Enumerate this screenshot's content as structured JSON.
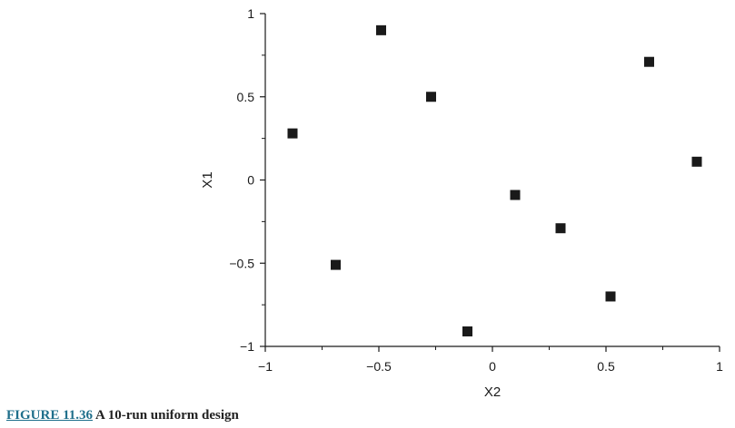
{
  "caption": {
    "label": "FIGURE 11.36",
    "text": "A 10-run uniform design",
    "label_color": "#1f6f8b"
  },
  "chart_data": {
    "type": "scatter",
    "xlabel": "X2",
    "ylabel": "X1",
    "xlim": [
      -1,
      1
    ],
    "ylim": [
      -1,
      1
    ],
    "xticks": [
      -1,
      -0.5,
      0,
      0.5,
      1
    ],
    "xtick_labels": [
      "−1",
      "−0.5",
      "0",
      "0.5",
      "1"
    ],
    "yticks": [
      -1,
      -0.5,
      0,
      0.5,
      1
    ],
    "ytick_labels": [
      "−1",
      "−0.5",
      "0",
      "0.5",
      "1"
    ],
    "grid": false,
    "marker": "square",
    "marker_color": "#1a1a1a",
    "series": [
      {
        "points": [
          {
            "x": -0.88,
            "y": 0.28
          },
          {
            "x": -0.69,
            "y": -0.51
          },
          {
            "x": -0.49,
            "y": 0.9
          },
          {
            "x": -0.27,
            "y": 0.5
          },
          {
            "x": -0.11,
            "y": -0.91
          },
          {
            "x": 0.1,
            "y": -0.09
          },
          {
            "x": 0.3,
            "y": -0.29
          },
          {
            "x": 0.52,
            "y": -0.7
          },
          {
            "x": 0.69,
            "y": 0.71
          },
          {
            "x": 0.9,
            "y": 0.11
          }
        ]
      }
    ]
  }
}
